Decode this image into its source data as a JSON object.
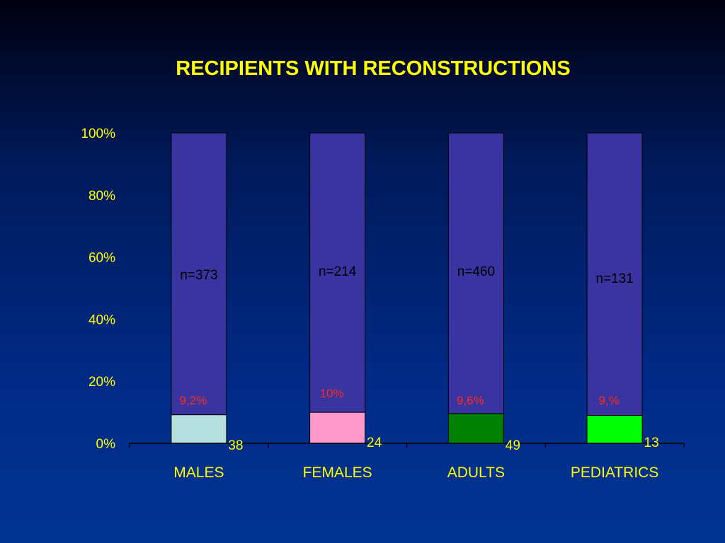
{
  "chart_data": {
    "type": "bar",
    "stacked": true,
    "title": "RECIPIENTS WITH RECONSTRUCTIONS",
    "categories": [
      "MALES",
      "FEMALES",
      "ADULTS",
      "PEDIATRICS"
    ],
    "yticks": [
      "0%",
      "20%",
      "40%",
      "60%",
      "80%",
      "100%"
    ],
    "ylim": [
      0,
      100
    ],
    "series": [
      {
        "values": [
          9.2,
          10,
          9.6,
          9.0
        ],
        "colors": [
          "#b5dede",
          "#ff99cc",
          "#008000",
          "#00ff00"
        ]
      },
      {
        "values": [
          90.8,
          90,
          90.4,
          91.0
        ],
        "colors": [
          "#3a34a0",
          "#3a34a0",
          "#3a34a0",
          "#3a34a0"
        ]
      }
    ],
    "total_labels": [
      "n=373",
      "n=214",
      "n=460",
      "n=131"
    ],
    "percent_labels": [
      "9,2%",
      "10%",
      "9,6%",
      "9,%"
    ],
    "count_labels": [
      "38",
      "24",
      "49",
      "13"
    ],
    "grid": false
  },
  "colors": {
    "text": "#ffff00",
    "percent_label": "#ff2a1a",
    "total_label": "#000000",
    "axis": "#000000"
  }
}
